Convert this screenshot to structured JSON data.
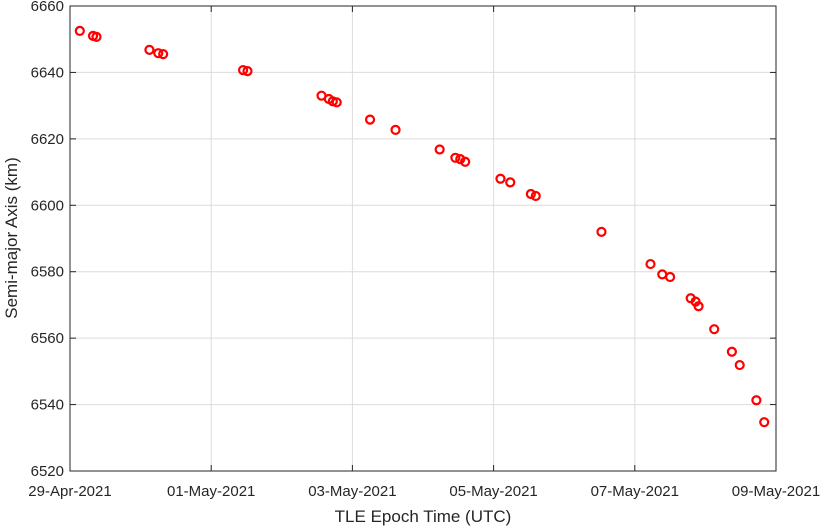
{
  "chart_data": {
    "type": "scatter",
    "title": "",
    "xlabel": "TLE Epoch Time (UTC)",
    "ylabel": "Semi-major Axis (km)",
    "x_type": "date",
    "xlim": [
      "2021-04-29T00:00",
      "2021-05-09T00:00"
    ],
    "ylim": [
      6520,
      6660
    ],
    "x_ticks": [
      "2021-04-29",
      "2021-05-01",
      "2021-05-03",
      "2021-05-05",
      "2021-05-07",
      "2021-05-09"
    ],
    "x_tick_labels": [
      "29-Apr-2021",
      "01-May-2021",
      "03-May-2021",
      "05-May-2021",
      "07-May-2021",
      "09-May-2021"
    ],
    "y_ticks": [
      6520,
      6540,
      6560,
      6580,
      6600,
      6620,
      6640,
      6660
    ],
    "y_tick_labels": [
      "6520",
      "6540",
      "6560",
      "6580",
      "6600",
      "6620",
      "6640",
      "6660"
    ],
    "grid": true,
    "marker_color": "#ff0000",
    "marker": "circle-open",
    "points": [
      {
        "x": "2021-04-29T03:20",
        "y": 6652.5
      },
      {
        "x": "2021-04-29T07:50",
        "y": 6651.0
      },
      {
        "x": "2021-04-29T09:00",
        "y": 6650.7
      },
      {
        "x": "2021-04-30T03:00",
        "y": 6646.8
      },
      {
        "x": "2021-04-30T06:00",
        "y": 6645.8
      },
      {
        "x": "2021-04-30T07:40",
        "y": 6645.5
      },
      {
        "x": "2021-05-01T10:50",
        "y": 6640.7
      },
      {
        "x": "2021-05-01T12:20",
        "y": 6640.4
      },
      {
        "x": "2021-05-02T13:30",
        "y": 6633.0
      },
      {
        "x": "2021-05-02T16:00",
        "y": 6632.0
      },
      {
        "x": "2021-05-02T17:20",
        "y": 6631.3
      },
      {
        "x": "2021-05-02T18:40",
        "y": 6631.0
      },
      {
        "x": "2021-05-03T06:00",
        "y": 6625.8
      },
      {
        "x": "2021-05-03T14:40",
        "y": 6622.7
      },
      {
        "x": "2021-05-04T05:40",
        "y": 6616.8
      },
      {
        "x": "2021-05-04T11:00",
        "y": 6614.3
      },
      {
        "x": "2021-05-04T12:40",
        "y": 6613.9
      },
      {
        "x": "2021-05-04T14:20",
        "y": 6613.1
      },
      {
        "x": "2021-05-05T02:20",
        "y": 6608.0
      },
      {
        "x": "2021-05-05T05:40",
        "y": 6606.9
      },
      {
        "x": "2021-05-05T12:40",
        "y": 6603.4
      },
      {
        "x": "2021-05-05T14:20",
        "y": 6602.8
      },
      {
        "x": "2021-05-06T12:40",
        "y": 6592.0
      },
      {
        "x": "2021-05-07T05:20",
        "y": 6582.3
      },
      {
        "x": "2021-05-07T09:20",
        "y": 6579.2
      },
      {
        "x": "2021-05-07T12:00",
        "y": 6578.4
      },
      {
        "x": "2021-05-07T19:00",
        "y": 6572.0
      },
      {
        "x": "2021-05-07T20:40",
        "y": 6571.0
      },
      {
        "x": "2021-05-07T21:40",
        "y": 6569.6
      },
      {
        "x": "2021-05-08T03:00",
        "y": 6562.7
      },
      {
        "x": "2021-05-08T09:00",
        "y": 6555.9
      },
      {
        "x": "2021-05-08T11:40",
        "y": 6551.9
      },
      {
        "x": "2021-05-08T17:20",
        "y": 6541.3
      },
      {
        "x": "2021-05-08T20:00",
        "y": 6534.7
      }
    ]
  }
}
